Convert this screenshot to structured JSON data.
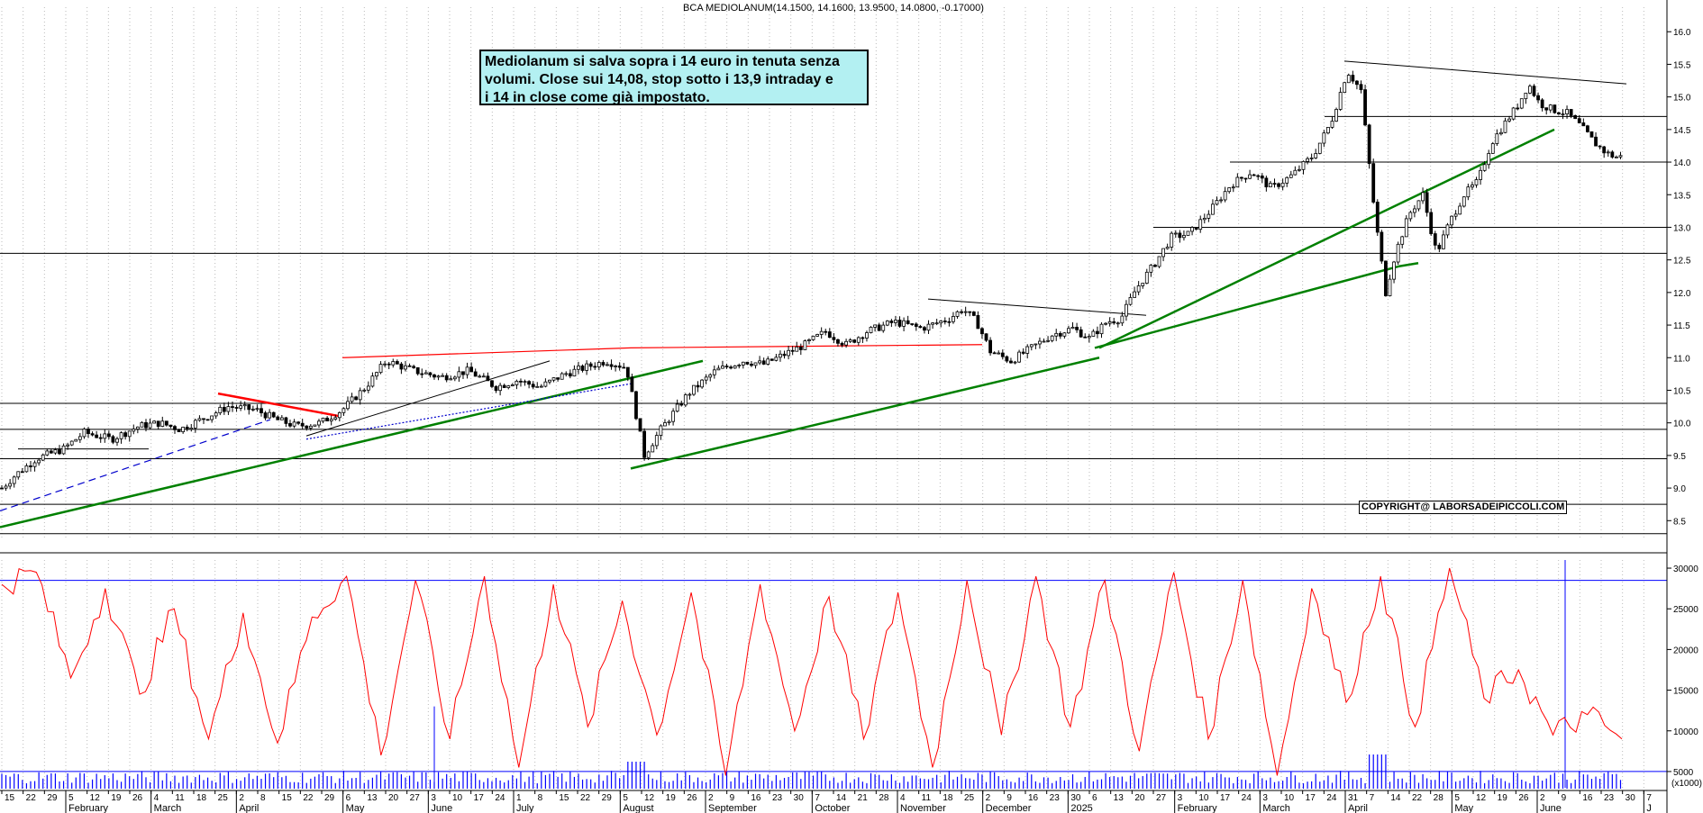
{
  "chart_data": [
    {
      "type": "candlestick",
      "title": "BCA MEDIOLANUM(14.1500, 14.1600, 13.9500, 14.0800, -0.17000)",
      "ylim": [
        8.2,
        16.1
      ],
      "y_ticks": [
        "16.0",
        "15.5",
        "15.0",
        "14.5",
        "14.0",
        "13.5",
        "13.0",
        "12.5",
        "12.0",
        "11.5",
        "11.0",
        "10.5",
        "10.0",
        "9.5",
        "9.0",
        "8.5"
      ],
      "y_tick_values": [
        16.0,
        15.5,
        15.0,
        14.5,
        14.0,
        13.5,
        13.0,
        12.5,
        12.0,
        11.5,
        11.0,
        10.5,
        10.0,
        9.5,
        9.0,
        8.5
      ],
      "price_path": [
        [
          0,
          9.0
        ],
        [
          10,
          9.2
        ],
        [
          25,
          9.45
        ],
        [
          45,
          9.6
        ],
        [
          60,
          9.85
        ],
        [
          80,
          9.75
        ],
        [
          100,
          9.95
        ],
        [
          115,
          10.0
        ],
        [
          130,
          9.9
        ],
        [
          150,
          10.1
        ],
        [
          165,
          10.25
        ],
        [
          185,
          10.2
        ],
        [
          200,
          10.05
        ],
        [
          215,
          9.95
        ],
        [
          232,
          10.0
        ],
        [
          248,
          10.2
        ],
        [
          265,
          10.55
        ],
        [
          280,
          10.95
        ],
        [
          300,
          10.8
        ],
        [
          320,
          10.7
        ],
        [
          340,
          10.8
        ],
        [
          360,
          10.55
        ],
        [
          375,
          10.65
        ],
        [
          392,
          10.55
        ],
        [
          410,
          10.75
        ],
        [
          425,
          10.85
        ],
        [
          440,
          10.95
        ],
        [
          455,
          10.85
        ],
        [
          468,
          9.5
        ],
        [
          480,
          9.9
        ],
        [
          500,
          10.45
        ],
        [
          520,
          10.8
        ],
        [
          540,
          10.95
        ],
        [
          555,
          10.9
        ],
        [
          570,
          11.05
        ],
        [
          585,
          11.2
        ],
        [
          600,
          11.4
        ],
        [
          615,
          11.2
        ],
        [
          630,
          11.4
        ],
        [
          650,
          11.55
        ],
        [
          670,
          11.45
        ],
        [
          690,
          11.6
        ],
        [
          700,
          11.75
        ],
        [
          710,
          11.55
        ],
        [
          720,
          11.1
        ],
        [
          735,
          10.95
        ],
        [
          750,
          11.15
        ],
        [
          765,
          11.35
        ],
        [
          780,
          11.45
        ],
        [
          792,
          11.3
        ],
        [
          805,
          11.55
        ],
        [
          815,
          11.6
        ],
        [
          826,
          12.05
        ],
        [
          840,
          12.45
        ],
        [
          852,
          12.85
        ],
        [
          865,
          12.9
        ],
        [
          880,
          13.25
        ],
        [
          895,
          13.65
        ],
        [
          910,
          13.85
        ],
        [
          925,
          13.6
        ],
        [
          940,
          13.8
        ],
        [
          955,
          14.1
        ],
        [
          968,
          14.6
        ],
        [
          980,
          15.4
        ],
        [
          990,
          15.1
        ],
        [
          1000,
          13.2
        ],
        [
          1008,
          12.0
        ],
        [
          1015,
          12.6
        ],
        [
          1025,
          13.2
        ],
        [
          1035,
          13.5
        ],
        [
          1045,
          12.6
        ],
        [
          1055,
          13.1
        ],
        [
          1065,
          13.5
        ],
        [
          1075,
          13.7
        ],
        [
          1085,
          14.3
        ],
        [
          1095,
          14.6
        ],
        [
          1105,
          14.9
        ],
        [
          1112,
          15.2
        ],
        [
          1120,
          14.9
        ],
        [
          1130,
          14.8
        ],
        [
          1140,
          14.75
        ],
        [
          1150,
          14.55
        ],
        [
          1160,
          14.3
        ],
        [
          1168,
          14.15
        ],
        [
          1175,
          14.08
        ]
      ],
      "x_ticks": [
        "15",
        "22",
        "29",
        "5",
        "12",
        "19",
        "26",
        "4",
        "11",
        "18",
        "25",
        "2",
        "8",
        "15",
        "22",
        "29",
        "6",
        "13",
        "20",
        "27",
        "3",
        "10",
        "17",
        "24",
        "1",
        "8",
        "15",
        "22",
        "29",
        "5",
        "12",
        "19",
        "26",
        "2",
        "9",
        "16",
        "23",
        "30",
        "7",
        "14",
        "21",
        "28",
        "4",
        "11",
        "18",
        "25",
        "2",
        "9",
        "16",
        "23",
        "30",
        "6",
        "13",
        "20",
        "27",
        "3",
        "10",
        "17",
        "24",
        "3",
        "10",
        "17",
        "24",
        "31",
        "7",
        "14",
        "22",
        "28",
        "5",
        "12",
        "19",
        "26",
        "2",
        "9",
        "16",
        "23",
        "30",
        "7"
      ],
      "x_months": [
        "February",
        "March",
        "April",
        "May",
        "June",
        "July",
        "August",
        "September",
        "October",
        "November",
        "December",
        "2025",
        "February",
        "March",
        "April",
        "May",
        "June",
        "J"
      ]
    },
    {
      "type": "line",
      "series": [
        {
          "values": [
            28000,
            29500,
            16500,
            27500,
            14500,
            25000,
            9000,
            24500,
            8500,
            24000,
            29000,
            7000,
            28500,
            9000,
            29000,
            5500,
            28000,
            10500,
            26000,
            9500,
            27000,
            4500,
            28000,
            10000,
            26500,
            9000,
            27000,
            5500,
            28500,
            9500,
            29000,
            10500,
            28500,
            7500,
            29500,
            9000,
            28500,
            4500,
            27500,
            13500,
            29000,
            10500,
            30000,
            14000,
            17500,
            9500,
            12000,
            9000
          ]
        }
      ],
      "ylim": [
        3000,
        31000
      ],
      "y_ticks": [
        "30000",
        "25000",
        "20000",
        "15000",
        "10000",
        "5000"
      ],
      "y_tick_values": [
        30000,
        25000,
        20000,
        15000,
        10000,
        5000
      ],
      "reference_lines": [
        28500,
        5000
      ],
      "scale_label": "(x1000)"
    }
  ],
  "annotations": {
    "note_text": "Mediolanum si salva sopra i 14 euro in tenuta senza\nvolumi. Close sui 14,08, stop sotto i 13,9 intraday e\ni 14 in close come già impostato.",
    "copyright": "COPYRIGHT@ LABORSADEIPICCOLI.COM"
  },
  "colors": {
    "trendline_green": "#008000",
    "trendline_red": "#ff0000",
    "trendline_blue": "#0000cc",
    "oscillator": "#ff0000",
    "reference_line": "#0000ff",
    "grid": "#bbbbbb"
  }
}
